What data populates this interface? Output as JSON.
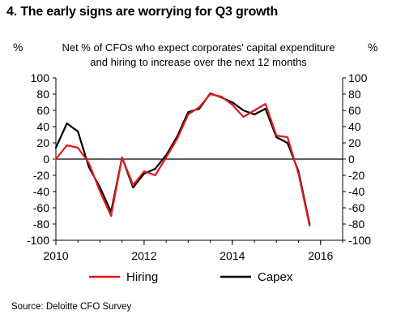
{
  "chart_data": {
    "type": "line",
    "title": "4. The early signs are worrying for Q3 growth",
    "subtitle_lines": [
      "Net % of CFOs who expect corporates' capital expenditure",
      "and hiring to increase over the next 12 months"
    ],
    "ylabel_left": "%",
    "ylabel_right": "%",
    "ylim": [
      -100,
      100
    ],
    "yticks": [
      100,
      80,
      60,
      40,
      20,
      0,
      -20,
      -40,
      -60,
      -80,
      -100
    ],
    "xlim": [
      2010,
      2016.5
    ],
    "xticks": [
      2010,
      2012,
      2014,
      2016
    ],
    "grid": false,
    "legend_position": "bottom",
    "series": [
      {
        "name": "Hiring",
        "color": "#e41a1c",
        "x": [
          2010.0,
          2010.25,
          2010.5,
          2010.75,
          2011.0,
          2011.25,
          2011.5,
          2011.75,
          2012.0,
          2012.25,
          2012.5,
          2012.75,
          2013.0,
          2013.25,
          2013.5,
          2013.75,
          2014.0,
          2014.25,
          2014.5,
          2014.75,
          2015.0,
          2015.25,
          2015.5,
          2015.75
        ],
        "values": [
          0,
          17,
          14,
          -5,
          -40,
          -70,
          2,
          -32,
          -15,
          -20,
          2,
          25,
          55,
          64,
          80,
          77,
          67,
          52,
          60,
          68,
          29,
          27,
          -18,
          -82
        ]
      },
      {
        "name": "Capex",
        "color": "#000000",
        "x": [
          2010.0,
          2010.25,
          2010.5,
          2010.75,
          2011.0,
          2011.25,
          2011.5,
          2011.75,
          2012.0,
          2012.25,
          2012.5,
          2012.75,
          2013.0,
          2013.25,
          2013.5,
          2013.75,
          2014.0,
          2014.25,
          2014.5,
          2014.75,
          2015.0,
          2015.25,
          2015.5,
          2015.75
        ],
        "values": [
          14,
          44,
          34,
          -10,
          -35,
          -65,
          2,
          -35,
          -18,
          -12,
          5,
          28,
          58,
          62,
          81,
          76,
          70,
          60,
          55,
          62,
          27,
          20,
          -15,
          -80
        ]
      }
    ]
  },
  "source": "Source: Deloitte CFO Survey"
}
